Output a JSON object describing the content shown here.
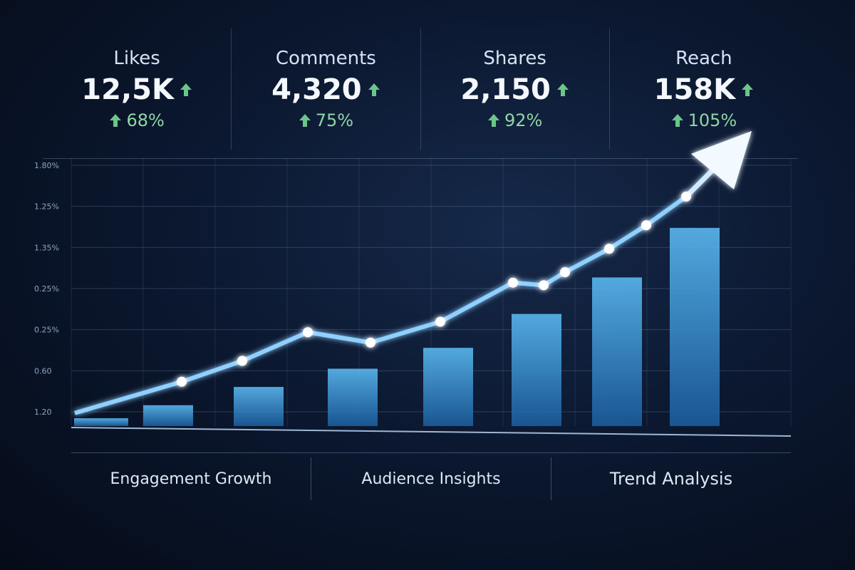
{
  "metrics": [
    {
      "label": "Likes",
      "value": "12,5K",
      "change": "68%"
    },
    {
      "label": "Comments",
      "value": "4,320",
      "change": "75%"
    },
    {
      "label": "Shares",
      "value": "2,150",
      "change": "92%"
    },
    {
      "label": "Reach",
      "value": "158K",
      "change": "105%"
    }
  ],
  "chart": {
    "y_labels": [
      "1.80%",
      "1.25%",
      "1.35%",
      "0.25%",
      "0.25%",
      "0.60",
      "1.20"
    ],
    "bars": [
      3,
      8,
      15,
      22,
      30,
      43,
      57,
      76
    ],
    "line": [
      5,
      17,
      25,
      36,
      32,
      40,
      55,
      54,
      59,
      68,
      77,
      88
    ]
  },
  "tabs": [
    "Engagement Growth",
    "Audience Insights",
    "Trend Analysis"
  ]
}
